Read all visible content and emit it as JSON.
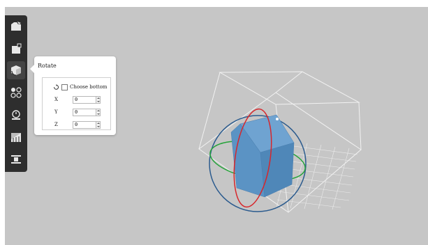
{
  "toolbar": {
    "items": [
      {
        "name": "open-file-icon"
      },
      {
        "name": "move-icon"
      },
      {
        "name": "rotate-icon",
        "active": true
      },
      {
        "name": "scale-icon"
      },
      {
        "name": "mirror-icon"
      },
      {
        "name": "support-icon"
      },
      {
        "name": "slice-icon"
      }
    ]
  },
  "rotate_panel": {
    "title": "Rotate",
    "choose_bottom_label": "Choose bottom",
    "choose_bottom_checked": false,
    "axes": [
      {
        "label": "X",
        "value": "0"
      },
      {
        "label": "Y",
        "value": "0"
      },
      {
        "label": "Z",
        "value": "0"
      }
    ]
  },
  "scene": {
    "background": "#c6c6c6",
    "model_color": "#5b93c4",
    "ring_colors": {
      "x": "#d7262b",
      "y": "#25a33a",
      "z": "#2b5b8e"
    }
  }
}
